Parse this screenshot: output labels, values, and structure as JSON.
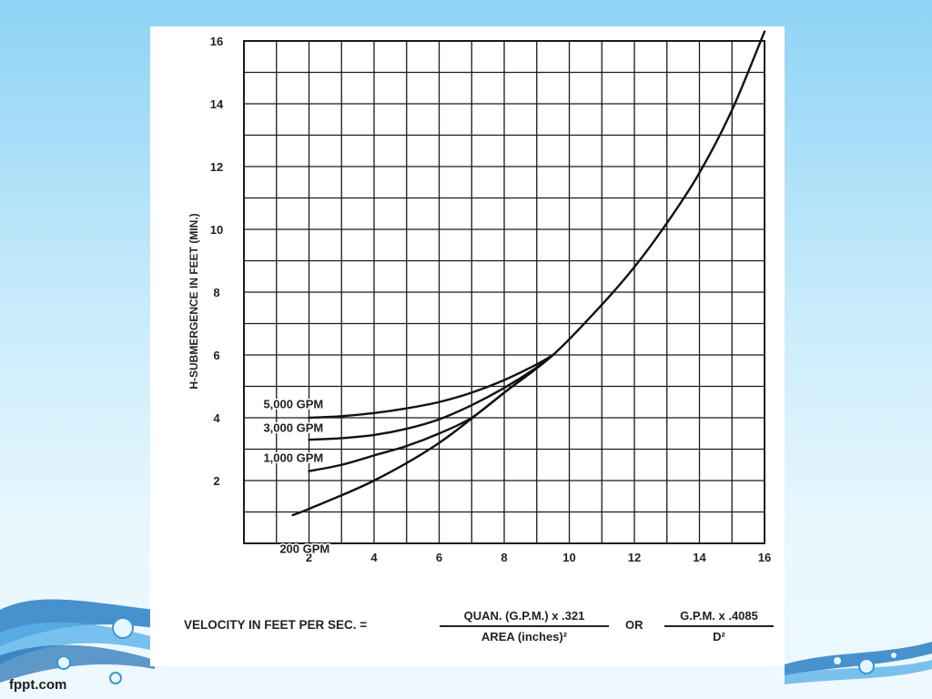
{
  "footer": {
    "brand": "fppt.com"
  },
  "chart_data": {
    "type": "line",
    "xlim": [
      0,
      16
    ],
    "ylim": [
      0,
      16
    ],
    "x_ticks": [
      2,
      4,
      6,
      8,
      10,
      12,
      14,
      16
    ],
    "y_ticks": [
      2,
      4,
      6,
      8,
      10,
      12,
      14,
      16
    ],
    "grid": true,
    "ylabel": "H-SUBMERGENCE IN FEET (MIN.)",
    "series": [
      {
        "name": "200 GPM",
        "x": [
          1.5,
          2,
          4,
          6,
          8,
          9.5,
          11,
          12,
          13,
          14,
          15,
          16
        ],
        "y": [
          0.9,
          1.1,
          2.0,
          3.2,
          4.8,
          6.0,
          7.6,
          8.8,
          10.2,
          11.8,
          13.8,
          16.3
        ]
      },
      {
        "name": "1,000 GPM",
        "x": [
          2,
          3,
          4,
          5,
          6,
          7,
          8,
          9,
          9.5
        ],
        "y": [
          2.3,
          2.5,
          2.8,
          3.1,
          3.5,
          4.0,
          4.8,
          5.6,
          6.0
        ]
      },
      {
        "name": "3,000 GPM",
        "x": [
          2,
          3,
          4,
          5,
          6,
          7,
          8,
          9,
          9.5
        ],
        "y": [
          3.3,
          3.35,
          3.45,
          3.65,
          3.95,
          4.4,
          4.95,
          5.6,
          6.0
        ]
      },
      {
        "name": "5,000 GPM",
        "x": [
          2,
          3,
          4,
          5,
          6,
          7,
          8,
          9,
          9.5
        ],
        "y": [
          4.0,
          4.05,
          4.15,
          4.3,
          4.5,
          4.8,
          5.2,
          5.7,
          6.0
        ]
      }
    ],
    "formula": {
      "lhs": "VELOCITY IN FEET PER SEC. =",
      "frac1_num": "QUAN. (G.P.M.) x .321",
      "frac1_den": "AREA (inches)²",
      "or": "OR",
      "frac2_num": "G.P.M. x .4085",
      "frac2_den": "D²"
    }
  }
}
